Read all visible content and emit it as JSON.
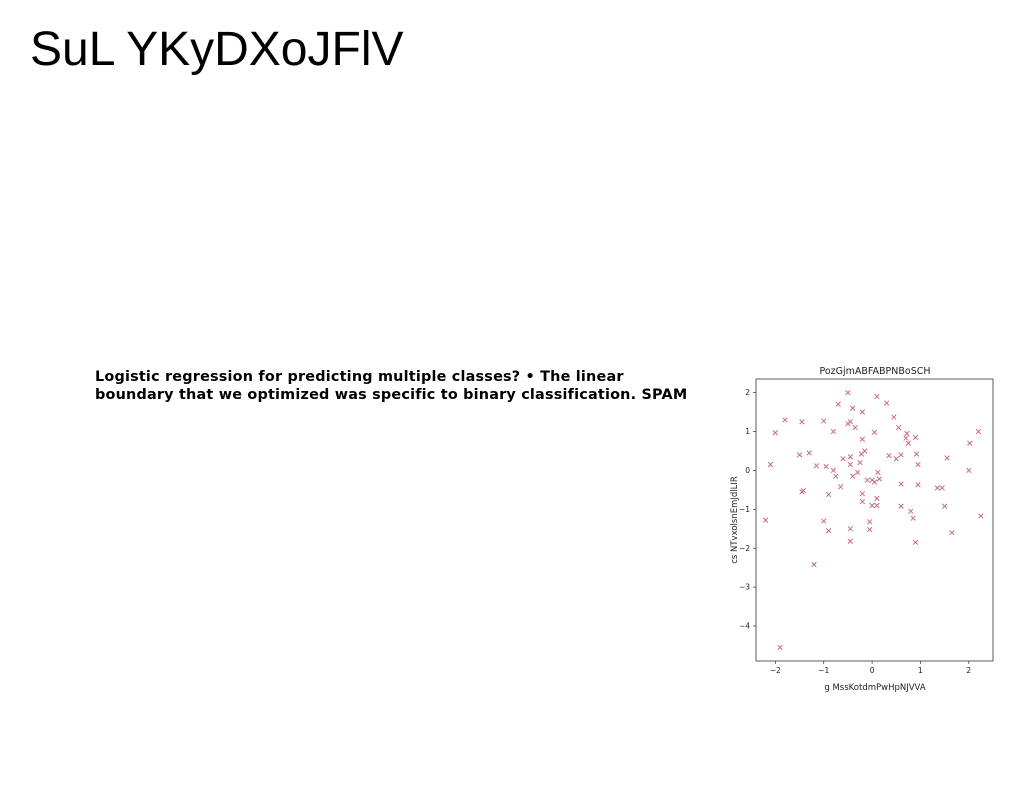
{
  "slide": {
    "title": "SuL YKyDXoJFlV",
    "body": "Logistic regression for predicting multiple classes? • The linear boundary that we optimized was specific to binary classification. SPAM"
  },
  "chart_data": {
    "type": "scatter",
    "title": "PozGjmABFABPNBoSCH",
    "xlabel": "g MssKotdmPwHpNJVVA",
    "ylabel": "cs NTvxolsnEmJdlLIR",
    "xlim": [
      -2.4,
      2.5
    ],
    "ylim": [
      -4.9,
      2.35
    ],
    "xticks": [
      -2,
      -1,
      0,
      1,
      2
    ],
    "xtick_labels": [
      "−2",
      "−1",
      "0",
      "1",
      "2"
    ],
    "yticks": [
      2,
      1,
      0,
      -1,
      -2,
      -3,
      -4
    ],
    "ytick_labels": [
      "2",
      "1",
      "0",
      "−1",
      "−2",
      "−3",
      "−4"
    ],
    "marker": "x",
    "color": "#c96a86",
    "grid": false,
    "points": [
      [
        -2.2,
        -1.28
      ],
      [
        -2.1,
        0.15
      ],
      [
        -2.0,
        0.97
      ],
      [
        -1.9,
        -4.55
      ],
      [
        -1.8,
        1.3
      ],
      [
        -1.5,
        0.4
      ],
      [
        -1.45,
        1.25
      ],
      [
        -1.45,
        -0.55
      ],
      [
        -1.42,
        -0.52
      ],
      [
        -1.3,
        0.45
      ],
      [
        -1.2,
        -2.42
      ],
      [
        -1.15,
        0.12
      ],
      [
        -1.0,
        -1.3
      ],
      [
        -1.0,
        1.27
      ],
      [
        -0.95,
        0.1
      ],
      [
        -0.9,
        -0.62
      ],
      [
        -0.9,
        -1.55
      ],
      [
        -0.8,
        1.0
      ],
      [
        -0.8,
        0.0
      ],
      [
        -0.75,
        -0.15
      ],
      [
        -0.7,
        1.7
      ],
      [
        -0.65,
        -0.42
      ],
      [
        -0.6,
        0.3
      ],
      [
        -0.5,
        2.0
      ],
      [
        -0.5,
        1.2
      ],
      [
        -0.45,
        1.25
      ],
      [
        -0.45,
        0.35
      ],
      [
        -0.45,
        0.15
      ],
      [
        -0.45,
        -1.5
      ],
      [
        -0.45,
        -1.82
      ],
      [
        -0.4,
        1.6
      ],
      [
        -0.4,
        -0.15
      ],
      [
        -0.35,
        1.1
      ],
      [
        -0.3,
        -0.05
      ],
      [
        -0.25,
        0.2
      ],
      [
        -0.22,
        0.42
      ],
      [
        -0.2,
        1.5
      ],
      [
        -0.2,
        0.8
      ],
      [
        -0.2,
        -0.6
      ],
      [
        -0.2,
        -0.8
      ],
      [
        -0.15,
        0.5
      ],
      [
        -0.1,
        -0.25
      ],
      [
        -0.05,
        -1.32
      ],
      [
        -0.05,
        -1.52
      ],
      [
        0.0,
        -0.9
      ],
      [
        0.0,
        -0.25
      ],
      [
        0.05,
        0.98
      ],
      [
        0.05,
        -0.3
      ],
      [
        0.1,
        1.9
      ],
      [
        0.1,
        -0.72
      ],
      [
        0.1,
        -0.9
      ],
      [
        0.12,
        -0.05
      ],
      [
        0.15,
        -0.22
      ],
      [
        0.3,
        1.73
      ],
      [
        0.35,
        0.38
      ],
      [
        0.45,
        1.37
      ],
      [
        0.5,
        0.3
      ],
      [
        0.55,
        1.1
      ],
      [
        0.6,
        -0.92
      ],
      [
        0.6,
        -0.35
      ],
      [
        0.6,
        0.4
      ],
      [
        0.7,
        0.83
      ],
      [
        0.72,
        0.95
      ],
      [
        0.75,
        0.7
      ],
      [
        0.8,
        -1.05
      ],
      [
        0.85,
        -1.23
      ],
      [
        0.9,
        0.85
      ],
      [
        0.9,
        -1.85
      ],
      [
        0.92,
        0.42
      ],
      [
        0.95,
        0.15
      ],
      [
        0.95,
        -0.37
      ],
      [
        1.35,
        -0.45
      ],
      [
        1.45,
        -0.45
      ],
      [
        1.5,
        -0.92
      ],
      [
        1.55,
        0.32
      ],
      [
        1.65,
        -1.6
      ],
      [
        2.0,
        0.0
      ],
      [
        2.02,
        0.7
      ],
      [
        2.2,
        1.0
      ],
      [
        2.25,
        -1.17
      ]
    ]
  }
}
